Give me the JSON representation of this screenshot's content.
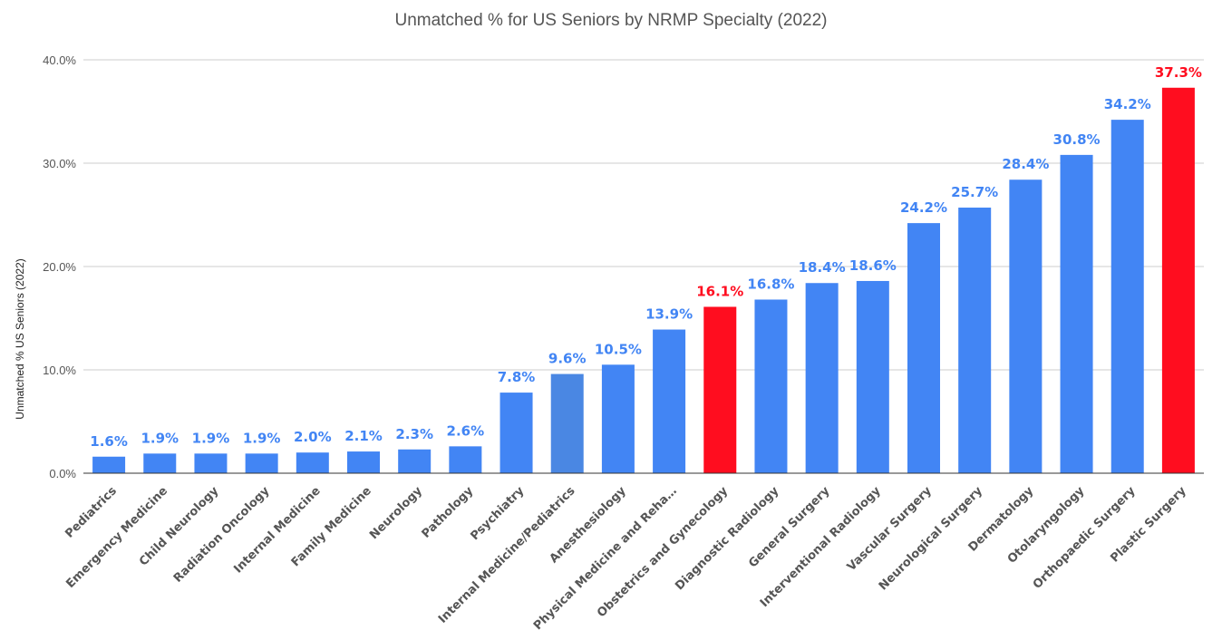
{
  "chart_data": {
    "type": "bar",
    "title": "Unmatched % for US Seniors by NRMP Specialty (2022)",
    "xlabel": "",
    "ylabel": "Unmatched % US Seniors (2022)",
    "ylim": [
      0,
      40
    ],
    "yticks": [
      "0.0%",
      "10.0%",
      "20.0%",
      "30.0%",
      "40.0%"
    ],
    "grid": true,
    "legend": "none",
    "categories": [
      "Pediatrics",
      "Emergency Medicine",
      "Child Neurology",
      "Radiation Oncology",
      "Internal Medicine",
      "Family Medicine",
      "Neurology",
      "Pathology",
      "Psychiatry",
      "Internal Medicine/Pediatrics",
      "Anesthesiology",
      "Physical Medicine and Reha…",
      "Obstetrics and Gynecology",
      "Diagnostic Radiology",
      "General Surgery",
      "Interventional Radiology",
      "Vascular Surgery",
      "Neurological Surgery",
      "Dermatology",
      "Otolaryngology",
      "Orthopaedic Surgery",
      "Plastic Surgery"
    ],
    "values": [
      1.6,
      1.9,
      1.9,
      1.9,
      2.0,
      2.1,
      2.3,
      2.6,
      7.8,
      9.6,
      10.5,
      13.9,
      16.1,
      16.8,
      18.4,
      18.6,
      24.2,
      25.7,
      28.4,
      30.8,
      34.2,
      37.3
    ],
    "labels": [
      "1.6%",
      "1.9%",
      "1.9%",
      "1.9%",
      "2.0%",
      "2.1%",
      "2.3%",
      "2.6%",
      "7.8%",
      "9.6%",
      "10.5%",
      "13.9%",
      "16.1%",
      "16.8%",
      "18.4%",
      "18.6%",
      "24.2%",
      "25.7%",
      "28.4%",
      "30.8%",
      "34.2%",
      "37.3%"
    ],
    "colors": {
      "default_bar": "#4285f4",
      "highlight_bar": "#ff0d1f",
      "alt_bar": "#4a87e3",
      "default_label": "#4285f4",
      "highlight_label": "#ff0d1f"
    },
    "highlighted": [
      12,
      21
    ],
    "alt_colored": [
      9
    ]
  }
}
